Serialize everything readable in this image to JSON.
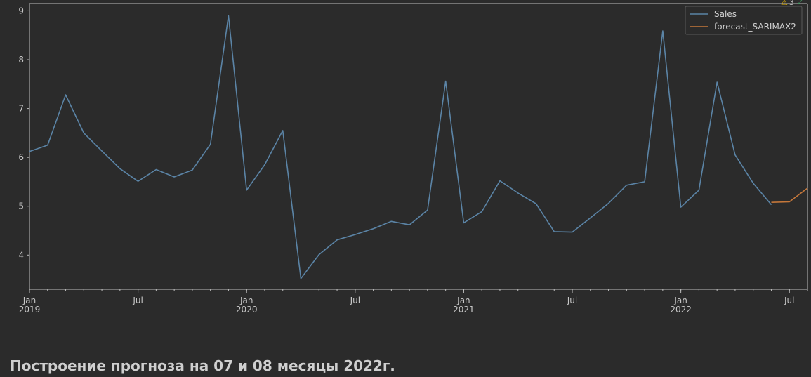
{
  "chart_data": {
    "type": "line",
    "x_axis": {
      "type": "date",
      "range": [
        "2019-01",
        "2022-08"
      ],
      "major_ticks": [
        {
          "at": "2019-01",
          "lines": [
            "Jan",
            "2019"
          ]
        },
        {
          "at": "2019-07",
          "lines": [
            "Jul"
          ]
        },
        {
          "at": "2020-01",
          "lines": [
            "Jan",
            "2020"
          ]
        },
        {
          "at": "2020-07",
          "lines": [
            "Jul"
          ]
        },
        {
          "at": "2021-01",
          "lines": [
            "Jan",
            "2021"
          ]
        },
        {
          "at": "2021-07",
          "lines": [
            "Jul"
          ]
        },
        {
          "at": "2022-01",
          "lines": [
            "Jan",
            "2022"
          ]
        },
        {
          "at": "2022-07",
          "lines": [
            "Jul"
          ]
        }
      ]
    },
    "y_axis": {
      "ticks": [
        4,
        5,
        6,
        7,
        8,
        9
      ],
      "ylim": [
        3.3,
        9.15
      ]
    },
    "grid": false,
    "legend_position": "top-right",
    "series": [
      {
        "name": "Sales",
        "color": "#5b84a6",
        "points": [
          [
            "2019-01",
            6.12
          ],
          [
            "2019-02",
            6.25
          ],
          [
            "2019-03",
            7.28
          ],
          [
            "2019-04",
            6.5
          ],
          [
            "2019-05",
            6.13
          ],
          [
            "2019-06",
            5.77
          ],
          [
            "2019-07",
            5.51
          ],
          [
            "2019-08",
            5.75
          ],
          [
            "2019-09",
            5.6
          ],
          [
            "2019-10",
            5.74
          ],
          [
            "2019-11",
            6.27
          ],
          [
            "2019-12",
            8.9
          ],
          [
            "2020-01",
            5.33
          ],
          [
            "2020-02",
            5.85
          ],
          [
            "2020-03",
            6.55
          ],
          [
            "2020-04",
            3.52
          ],
          [
            "2020-05",
            4.01
          ],
          [
            "2020-06",
            4.31
          ],
          [
            "2020-07",
            4.42
          ],
          [
            "2020-08",
            4.54
          ],
          [
            "2020-09",
            4.69
          ],
          [
            "2020-10",
            4.62
          ],
          [
            "2020-11",
            4.92
          ],
          [
            "2020-12",
            7.56
          ],
          [
            "2021-01",
            4.66
          ],
          [
            "2021-02",
            4.89
          ],
          [
            "2021-03",
            5.52
          ],
          [
            "2021-04",
            5.27
          ],
          [
            "2021-05",
            5.05
          ],
          [
            "2021-06",
            4.48
          ],
          [
            "2021-07",
            4.47
          ],
          [
            "2021-08",
            4.76
          ],
          [
            "2021-09",
            5.06
          ],
          [
            "2021-10",
            5.43
          ],
          [
            "2021-11",
            5.5
          ],
          [
            "2021-12",
            8.59
          ],
          [
            "2022-01",
            4.98
          ],
          [
            "2022-02",
            5.33
          ],
          [
            "2022-03",
            7.54
          ],
          [
            "2022-04",
            6.05
          ],
          [
            "2022-05",
            5.47
          ],
          [
            "2022-06",
            5.03
          ]
        ]
      },
      {
        "name": "forecast_SARIMAX2",
        "color": "#c5773a",
        "points": [
          [
            "2022-06",
            5.08
          ],
          [
            "2022-07",
            5.09
          ],
          [
            "2022-08",
            5.37
          ]
        ]
      }
    ]
  },
  "warning_indicator": {
    "icon": "warning-triangle-icon",
    "count": "3",
    "status_icon": "check-icon"
  },
  "heading": "Построение прогноза на 07 и 08 месяцы 2022г."
}
